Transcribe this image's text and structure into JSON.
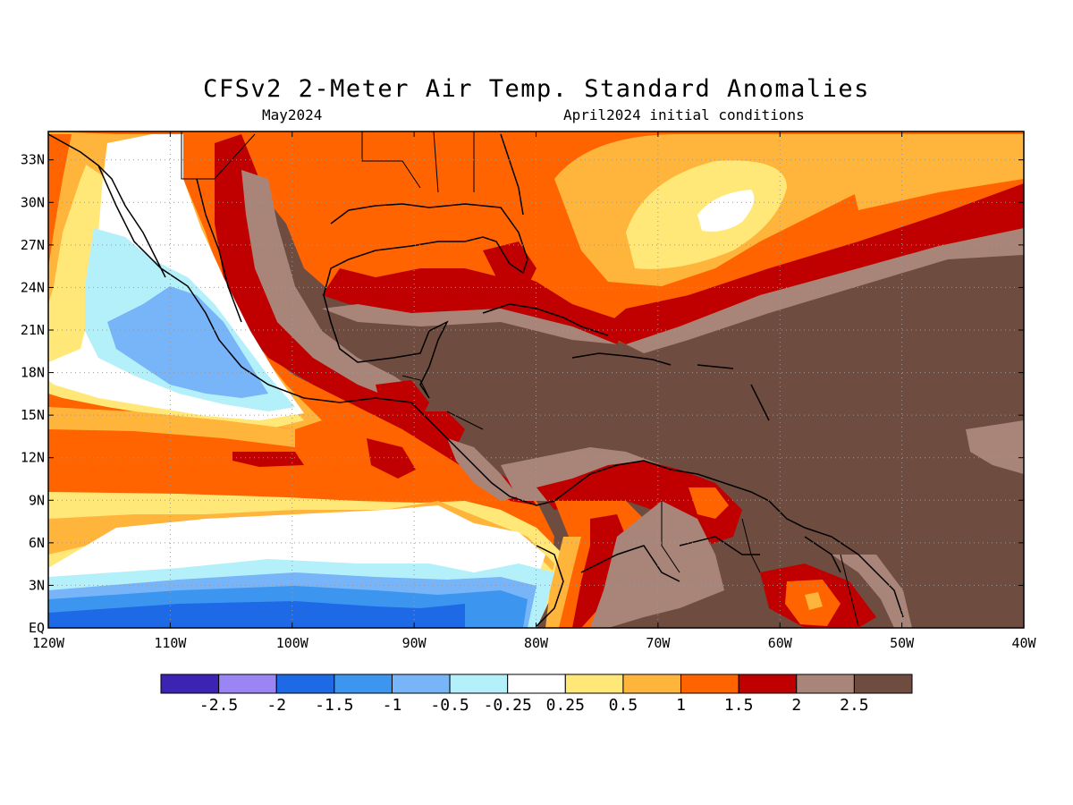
{
  "figure": {
    "title": "CFSv2 2-Meter Air Temp. Standard Anomalies",
    "valid_month": "May2024",
    "initial_conditions": "April2024 initial conditions"
  },
  "map": {
    "lon_range": [
      -120,
      -40
    ],
    "lat_range": [
      0,
      35
    ],
    "lon_ticks": [
      {
        "value": -120,
        "label": "120W"
      },
      {
        "value": -110,
        "label": "110W"
      },
      {
        "value": -100,
        "label": "100W"
      },
      {
        "value": -90,
        "label": "90W"
      },
      {
        "value": -80,
        "label": "80W"
      },
      {
        "value": -70,
        "label": "70W"
      },
      {
        "value": -60,
        "label": "60W"
      },
      {
        "value": -50,
        "label": "50W"
      },
      {
        "value": -40,
        "label": "40W"
      }
    ],
    "lat_ticks": [
      {
        "value": 0,
        "label": "EQ"
      },
      {
        "value": 3,
        "label": "3N"
      },
      {
        "value": 6,
        "label": "6N"
      },
      {
        "value": 9,
        "label": "9N"
      },
      {
        "value": 12,
        "label": "12N"
      },
      {
        "value": 15,
        "label": "15N"
      },
      {
        "value": 18,
        "label": "18N"
      },
      {
        "value": 21,
        "label": "21N"
      },
      {
        "value": 24,
        "label": "24N"
      },
      {
        "value": 27,
        "label": "27N"
      },
      {
        "value": 30,
        "label": "30N"
      },
      {
        "value": 33,
        "label": "33N"
      }
    ],
    "gridlines": "dotted"
  },
  "colorbar": {
    "colors": [
      "#3d23b4",
      "#9b84f4",
      "#1e6ae6",
      "#3c96f0",
      "#78b4f8",
      "#b4f0fa",
      "#ffffff",
      "#ffe878",
      "#ffb43c",
      "#ff6400",
      "#c00000",
      "#a88578",
      "#6e4c40"
    ],
    "labels": [
      "-2.5",
      "-2",
      "-1.5",
      "-1",
      "-0.5",
      "-0.25",
      "0.25",
      "0.5",
      "1",
      "1.5",
      "2",
      "2.5"
    ]
  }
}
